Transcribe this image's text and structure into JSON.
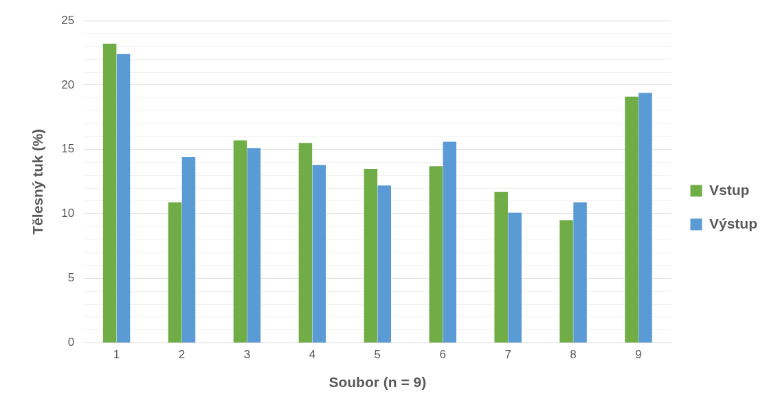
{
  "chart_data": {
    "type": "bar",
    "xlabel": "Soubor (n = 9)",
    "ylabel": "Tělesný tuk (%)",
    "categories": [
      "1",
      "2",
      "3",
      "4",
      "5",
      "6",
      "7",
      "8",
      "9"
    ],
    "series": [
      {
        "name": "Vstup",
        "color": "#70ad47",
        "values": [
          23.2,
          10.9,
          15.7,
          15.5,
          13.5,
          13.7,
          11.7,
          9.5,
          19.1
        ]
      },
      {
        "name": "Výstup",
        "color": "#5b9bd5",
        "values": [
          22.4,
          14.4,
          15.1,
          13.8,
          12.2,
          15.6,
          10.1,
          10.9,
          19.4
        ]
      }
    ],
    "ylim": [
      0,
      25
    ],
    "yticks": [
      0,
      {
        "value": 1,
        "label": null
      },
      {
        "value": 2,
        "label": null
      },
      {
        "value": 3,
        "label": null
      },
      {
        "value": 4,
        "label": null
      },
      5,
      {
        "value": 6,
        "label": null
      },
      {
        "value": 7,
        "label": null
      },
      {
        "value": 8,
        "label": null
      },
      {
        "value": 9,
        "label": null
      },
      10,
      {
        "value": 11,
        "label": null
      },
      {
        "value": 12,
        "label": null
      },
      {
        "value": 13,
        "label": null
      },
      {
        "value": 14,
        "label": null
      },
      15,
      {
        "value": 16,
        "label": null
      },
      {
        "value": 17,
        "label": null
      },
      {
        "value": 18,
        "label": null
      },
      {
        "value": 19,
        "label": null
      },
      20,
      {
        "value": 21,
        "label": null
      },
      {
        "value": 22,
        "label": null
      },
      {
        "value": 23,
        "label": null
      },
      {
        "value": 24,
        "label": null
      },
      25
    ],
    "grid": "y",
    "legend": "right"
  }
}
